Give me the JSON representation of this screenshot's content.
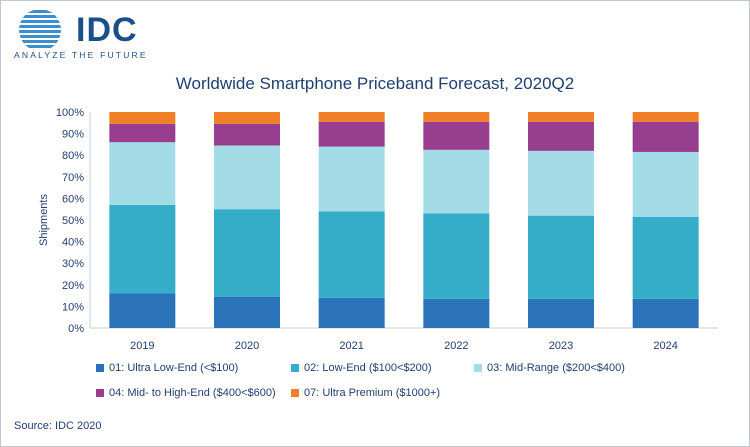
{
  "logo": {
    "word": "IDC",
    "tagline": "ANALYZE THE FUTURE",
    "color": "#1b4f8a"
  },
  "source": "Source: IDC 2020",
  "chart_data": {
    "type": "bar",
    "stacked": true,
    "title": "Worldwide Smartphone Priceband Forecast, 2020Q2",
    "xlabel": "",
    "ylabel": "Shipments",
    "ylim": [
      0,
      100
    ],
    "yticks": [
      "0%",
      "10%",
      "20%",
      "30%",
      "40%",
      "50%",
      "60%",
      "70%",
      "80%",
      "90%",
      "100%"
    ],
    "y_unit": "%",
    "grid": false,
    "legend_position": "bottom",
    "categories": [
      "2019",
      "2020",
      "2021",
      "2022",
      "2023",
      "2024"
    ],
    "series": [
      {
        "name": "01: Ultra Low-End (<$100)",
        "color": "#2a73b8",
        "values": [
          16,
          14.5,
          14,
          13.5,
          13.5,
          13.5
        ]
      },
      {
        "name": "02: Low-End ($100<$200)",
        "color": "#35acc8",
        "values": [
          41,
          40.5,
          40,
          39.5,
          38.5,
          38
        ]
      },
      {
        "name": "03: Mid-Range ($200<$400)",
        "color": "#a3dbe6",
        "values": [
          29,
          29.5,
          30,
          29.5,
          30,
          30
        ]
      },
      {
        "name": "04: Mid- to High-End ($400<$600)",
        "color": "#983e8f",
        "values": [
          8.5,
          10,
          11.5,
          13,
          13.5,
          14
        ]
      },
      {
        "name": "07: Ultra Premium ($1000+)",
        "color": "#f07f25",
        "values": [
          5.5,
          5.5,
          4.5,
          4.5,
          4.5,
          4.5
        ]
      }
    ]
  }
}
